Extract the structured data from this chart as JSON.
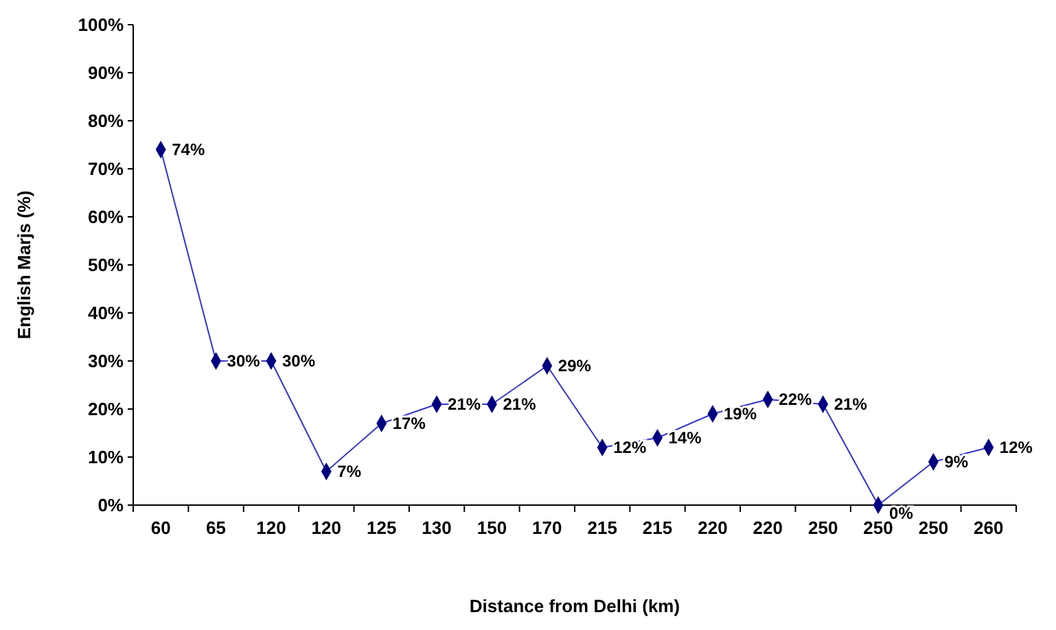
{
  "chart_data": {
    "type": "line",
    "xlabel": "Distance from Delhi (km)",
    "ylabel": "English Marjs (%)",
    "categories": [
      "60",
      "65",
      "120",
      "120",
      "125",
      "130",
      "150",
      "170",
      "215",
      "215",
      "220",
      "220",
      "250",
      "250",
      "250",
      "260"
    ],
    "series": [
      {
        "color": "#000080",
        "values": [
          74,
          30,
          30,
          7,
          17,
          21,
          21,
          29,
          12,
          14,
          19,
          22,
          21,
          0,
          9,
          12
        ]
      }
    ],
    "value_labels": [
      "74%",
      "30%",
      "30%",
      "7%",
      "17%",
      "21%",
      "21%",
      "29%",
      "12%",
      "14%",
      "19%",
      "22%",
      "21%",
      "0%",
      "9%",
      "12%"
    ],
    "ylim": [
      0,
      100
    ],
    "yticks": [
      {
        "value": 0,
        "label": "0%"
      },
      {
        "value": 10,
        "label": "10%"
      },
      {
        "value": 20,
        "label": "20%"
      },
      {
        "value": 30,
        "label": "30%"
      },
      {
        "value": 40,
        "label": "40%"
      },
      {
        "value": 50,
        "label": "50%"
      },
      {
        "value": 60,
        "label": "60%"
      },
      {
        "value": 70,
        "label": "70%"
      },
      {
        "value": 80,
        "label": "80%"
      },
      {
        "value": 90,
        "label": "90%"
      },
      {
        "value": 100,
        "label": "100%"
      }
    ],
    "marker": "diamond",
    "grid": false
  }
}
